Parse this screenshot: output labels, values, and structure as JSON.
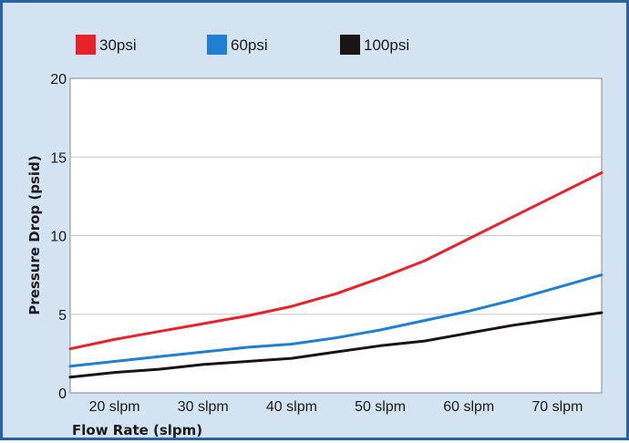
{
  "chart_data": {
    "type": "line",
    "xlabel": "Flow Rate (slpm)",
    "ylabel": "Pressure Drop (psid)",
    "x_tick_labels": [
      "20 slpm",
      "30 slpm",
      "40 slpm",
      "50 slpm",
      "60 slpm",
      "70 slpm"
    ],
    "y_ticks": [
      0,
      5,
      10,
      15,
      20
    ],
    "xlim": [
      15,
      75
    ],
    "ylim": [
      0,
      20
    ],
    "grid": "horizontal",
    "legend_position": "top-left",
    "series": [
      {
        "name": "30psi",
        "color": "#e8212b",
        "x": [
          15,
          20,
          25,
          30,
          35,
          40,
          45,
          50,
          55,
          60,
          65,
          70,
          75
        ],
        "y": [
          2.8,
          3.4,
          3.9,
          4.4,
          4.9,
          5.5,
          6.3,
          7.3,
          8.4,
          9.8,
          11.2,
          12.6,
          14.0
        ]
      },
      {
        "name": "60psi",
        "color": "#1f7fd0",
        "x": [
          15,
          20,
          25,
          30,
          35,
          40,
          45,
          50,
          55,
          60,
          65,
          70,
          75
        ],
        "y": [
          1.7,
          2.0,
          2.3,
          2.6,
          2.9,
          3.1,
          3.5,
          4.0,
          4.6,
          5.2,
          5.9,
          6.7,
          7.5
        ]
      },
      {
        "name": "100psi",
        "color": "#1a1414",
        "x": [
          15,
          20,
          25,
          30,
          35,
          40,
          45,
          50,
          55,
          60,
          65,
          70,
          75
        ],
        "y": [
          1.0,
          1.3,
          1.5,
          1.8,
          2.0,
          2.2,
          2.6,
          3.0,
          3.3,
          3.8,
          4.3,
          4.7,
          5.1
        ]
      }
    ]
  }
}
